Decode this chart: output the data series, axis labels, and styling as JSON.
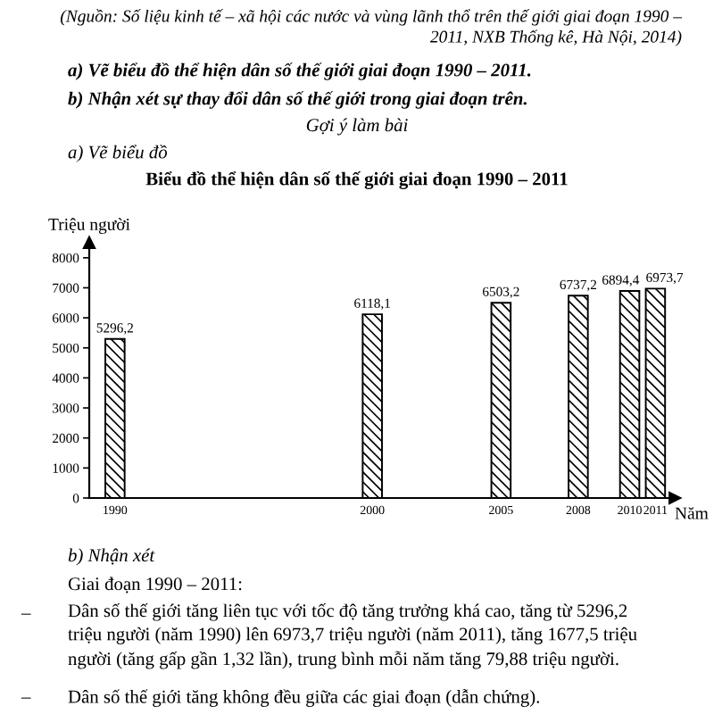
{
  "chart_data": {
    "type": "bar",
    "title": "Biểu đồ thể hiện dân số thế giới giai đoạn 1990 – 2011",
    "xlabel": "Năm",
    "ylabel": "Triệu người",
    "x": [
      1990,
      2000,
      2005,
      2008,
      2010,
      2011
    ],
    "values": [
      5296.2,
      6118.1,
      6503.2,
      6737.2,
      6894.4,
      6973.7
    ],
    "value_labels": [
      "5296,2",
      "6118,1",
      "6503,2",
      "6737,2",
      "6894,4",
      "6973,7"
    ],
    "color": "#000000",
    "xlim": [
      1989.0,
      2011.75
    ],
    "xticks": [
      1990,
      2000,
      2005,
      2008,
      2010,
      2011
    ],
    "ylim": [
      0,
      8500
    ],
    "yticks": [
      0,
      1000,
      2000,
      3000,
      4000,
      5000,
      6000,
      7000,
      8000
    ],
    "annotations": [
      "(Nguồn: Số liệu kinh tế – xã hội các nước và vùng lãnh thổ trên thế giới giai đoạn 1990 –\n2011, NXB Thống kê, Hà Nội, 2014)",
      "a) Vẽ biểu đồ thể hiện dân số thế giới giai đoạn 1990 – 2011.",
      "b) Nhận xét sự thay đổi dân số thế giới trong giai đoạn trên.",
      "Gợi ý làm bài",
      "a) Vẽ biểu đồ",
      "b) Nhận xét",
      "Giai đoạn 1990 – 2011:",
      "–",
      "Dân số thế giới tăng liên tục với tốc độ tăng trưởng khá cao, tăng từ 5296,2\ntriệu người (năm 1990) lên 6973,7 triệu người (năm 2011), tăng 1677,5 triệu\nngười (tăng gấp gần 1,32 lần), trung bình mỗi năm tăng 79,88 triệu người.",
      "–",
      "Dân số thế giới tăng không đều giữa các giai đoạn (dẫn chứng)."
    ]
  }
}
